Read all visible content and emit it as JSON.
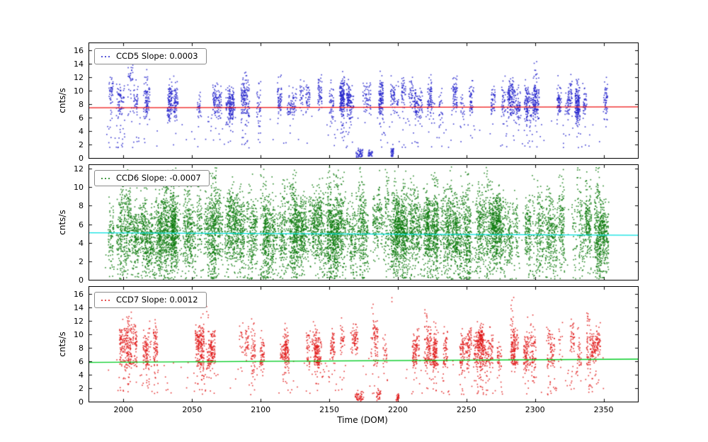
{
  "figure": {
    "xlabel": "Time (DOM)",
    "xlim": [
      1975,
      2375
    ],
    "x_ticks": [
      2000,
      2050,
      2100,
      2150,
      2200,
      2250,
      2300,
      2350
    ],
    "background": "#ffffff",
    "axis_color": "#000000",
    "legend_position": "upper left",
    "grid": false
  },
  "chart_data": [
    {
      "type": "scatter",
      "name": "CCD5",
      "legend_label": "CCD5 Slope: 0.0003",
      "ylabel": "cnts/s",
      "ylim": [
        0,
        17
      ],
      "yticks": [
        0,
        2,
        4,
        6,
        8,
        10,
        12,
        14,
        16
      ],
      "point_color": "#2121cc",
      "fit_line": {
        "color": "#ee1111",
        "slope": 0.0003,
        "center": 7.5,
        "x_center": 2170
      },
      "x_data_range": [
        1988,
        2352
      ],
      "y_typical_range": [
        6,
        12
      ],
      "gen": {
        "seed": 101,
        "clusters": 72,
        "x_min": 1989,
        "x_max": 2352,
        "mean": 8.4,
        "mean_var": 2.2,
        "spread": 1.25,
        "width": 3.2,
        "pts_min": 15,
        "pts_max": 65,
        "tall_prob": 0.18,
        "tall_mult": 1.9,
        "low_prob": 0.32,
        "low_min": 1.5,
        "low_max": 6,
        "band": {
          "mean": 7.2,
          "spread": 0.5,
          "prob": 0.35,
          "n": 8
        },
        "streaks": [
          {
            "x": 2005,
            "mean": 11.5,
            "spread": 2.2,
            "w": 4,
            "n": 45
          },
          {
            "x": 2172,
            "mean": 0.6,
            "spread": 0.35,
            "w": 5,
            "n": 45
          },
          {
            "x": 2180,
            "mean": 0.7,
            "spread": 0.3,
            "w": 3,
            "n": 25
          },
          {
            "x": 2196,
            "mean": 0.8,
            "spread": 0.5,
            "w": 2,
            "n": 30
          }
        ],
        "background": {
          "n": 110,
          "y_min": 1.5,
          "y_max": 6.5
        },
        "y_clamp": [
          0.1,
          16.2
        ]
      }
    },
    {
      "type": "scatter",
      "name": "CCD6",
      "legend_label": "CCD6 Slope: -0.0007",
      "ylabel": "cnts/s",
      "ylim": [
        0,
        12.4
      ],
      "yticks": [
        0,
        2,
        4,
        6,
        8,
        10,
        12
      ],
      "point_color": "#0b7a0b",
      "fit_line": {
        "color": "#00e0e0",
        "slope": -0.0007,
        "center": 4.95,
        "x_center": 2170
      },
      "x_data_range": [
        1988,
        2352
      ],
      "y_typical_range": [
        1,
        9
      ],
      "gen": {
        "seed": 202,
        "clusters": 210,
        "x_min": 1989,
        "x_max": 2352,
        "mean": 5.4,
        "mean_var": 3.0,
        "spread": 1.7,
        "width": 4,
        "pts_min": 30,
        "pts_max": 80,
        "tall_prob": 0.25,
        "tall_mult": 1.7,
        "low_prob": 0.5,
        "low_min": 0.2,
        "low_max": 3.5,
        "streaks": [
          {
            "x": 2048,
            "mean": 9.2,
            "spread": 1.6,
            "w": 3,
            "n": 30
          },
          {
            "x": 2150,
            "mean": 9.0,
            "spread": 1.8,
            "w": 3,
            "n": 30
          },
          {
            "x": 2192,
            "mean": 9.5,
            "spread": 1.5,
            "w": 3,
            "n": 25
          },
          {
            "x": 2228,
            "mean": 9.0,
            "spread": 1.8,
            "w": 3,
            "n": 25
          },
          {
            "x": 2332,
            "mean": 8.8,
            "spread": 1.6,
            "w": 3,
            "n": 22
          }
        ],
        "background": {
          "n": 350,
          "y_min": 0.3,
          "y_max": 9
        },
        "y_clamp": [
          0.08,
          12.2
        ]
      }
    },
    {
      "type": "scatter",
      "name": "CCD7",
      "legend_label": "CCD7 Slope: 0.0012",
      "ylabel": "cnts/s",
      "ylim": [
        0,
        17
      ],
      "yticks": [
        0,
        2,
        4,
        6,
        8,
        10,
        12,
        14,
        16
      ],
      "point_color": "#e01818",
      "fit_line": {
        "color": "#00cc22",
        "slope": 0.0012,
        "center": 6.05,
        "x_center": 2170
      },
      "x_data_range": [
        1988,
        2352
      ],
      "y_typical_range": [
        4,
        12
      ],
      "gen": {
        "seed": 303,
        "clusters": 74,
        "x_min": 1989,
        "x_max": 2352,
        "mean": 8.3,
        "mean_var": 2.6,
        "spread": 1.25,
        "width": 3.2,
        "pts_min": 15,
        "pts_max": 60,
        "tall_prob": 0.15,
        "tall_mult": 1.8,
        "low_prob": 0.38,
        "low_min": 1,
        "low_max": 5,
        "band": {
          "mean": 5.9,
          "spread": 0.45,
          "prob": 0.45,
          "n": 12
        },
        "streaks": [
          {
            "x": 2172,
            "mean": 0.7,
            "spread": 0.4,
            "w": 6,
            "n": 50
          },
          {
            "x": 2186,
            "mean": 1.0,
            "spread": 0.5,
            "w": 3,
            "n": 25
          },
          {
            "x": 2200,
            "mean": 0.6,
            "spread": 0.3,
            "w": 3,
            "n": 25
          },
          {
            "x": 2196,
            "mean": 15.3,
            "spread": 0.3,
            "w": 1,
            "n": 2
          }
        ],
        "background": {
          "n": 120,
          "y_min": 1,
          "y_max": 6.5
        },
        "y_clamp": [
          0.1,
          16.2
        ]
      }
    }
  ]
}
